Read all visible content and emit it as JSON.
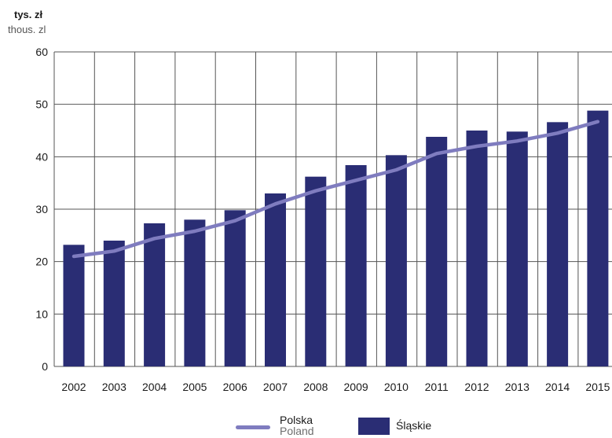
{
  "units": {
    "pl": "tys. zł",
    "en": "thous. zl"
  },
  "legend": {
    "line_pl": "Polska",
    "line_en": "Poland",
    "bars": "Śląskie"
  },
  "colors": {
    "bars": "#2a2d74",
    "line": "#7f7cbf",
    "grid": "#555555"
  },
  "chart_data": {
    "type": "bar",
    "categories": [
      "2002",
      "2003",
      "2004",
      "2005",
      "2006",
      "2007",
      "2008",
      "2009",
      "2010",
      "2011",
      "2012",
      "2013",
      "2014",
      "2015"
    ],
    "series": [
      {
        "name": "Śląskie",
        "kind": "bar",
        "values": [
          23.2,
          24.0,
          27.3,
          28.0,
          29.8,
          33.0,
          36.2,
          38.4,
          40.3,
          43.8,
          45.0,
          44.8,
          46.6,
          48.8
        ]
      },
      {
        "name": "Polska",
        "kind": "line",
        "values": [
          21.0,
          22.0,
          24.4,
          25.8,
          27.8,
          31.0,
          33.5,
          35.5,
          37.5,
          40.6,
          42.0,
          43.0,
          44.5,
          46.7
        ]
      }
    ],
    "ylim": [
      0,
      60
    ],
    "yticks": [
      0,
      10,
      20,
      30,
      40,
      50,
      60
    ],
    "grid": true
  }
}
